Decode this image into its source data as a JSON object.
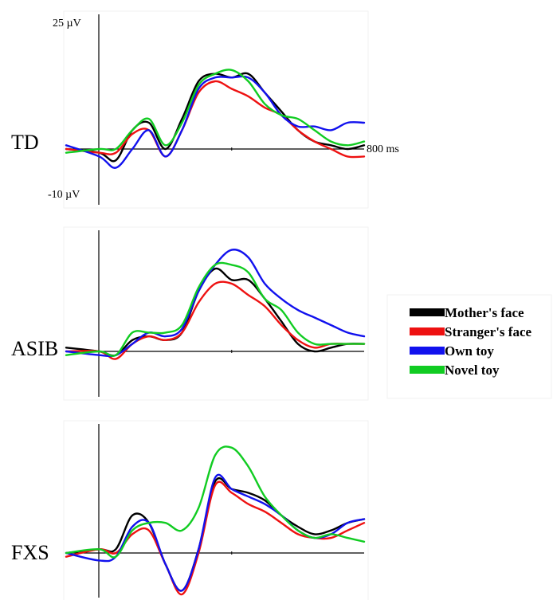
{
  "chart_data": {
    "type": "line",
    "x_axis": {
      "min": -100,
      "max": 800,
      "end_label": "800 ms"
    },
    "y_axis": {
      "min": -10,
      "max": 25,
      "top_label": "25 µV",
      "bottom_label": "-10 µV"
    },
    "legend": {
      "placement": "right",
      "entries": [
        {
          "name": "Mother's face",
          "color": "#000000"
        },
        {
          "name": "Stranger's face",
          "color": "#ee1111"
        },
        {
          "name": "Own toy",
          "color": "#1111ee"
        },
        {
          "name": "Novel toy",
          "color": "#11cc22"
        }
      ]
    },
    "panels": [
      {
        "label": "TD",
        "x": [
          -100,
          0,
          50,
          100,
          150,
          200,
          250,
          300,
          350,
          400,
          450,
          500,
          550,
          600,
          650,
          700,
          750,
          800
        ],
        "series": [
          {
            "name": "Mother's face",
            "values": [
              0,
              -1,
              -3,
              5,
              7,
              0,
              8,
              18,
              20,
              19,
              20,
              15,
              10,
              5,
              2,
              1,
              0,
              1
            ]
          },
          {
            "name": "Stranger's face",
            "values": [
              0,
              -1,
              -1,
              4,
              5,
              -2,
              5,
              15,
              18,
              16,
              14,
              11,
              9,
              5,
              2,
              0,
              -2,
              -2
            ]
          },
          {
            "name": "Own toy",
            "values": [
              1,
              -2,
              -5,
              0,
              5,
              -2,
              5,
              16,
              19,
              19,
              19,
              15,
              9,
              6,
              6,
              5,
              7,
              7
            ]
          },
          {
            "name": "Novel toy",
            "values": [
              -1,
              0,
              0,
              5,
              8,
              1,
              7,
              17,
              20,
              21,
              18,
              12,
              9,
              8,
              5,
              2,
              1,
              2
            ]
          }
        ]
      },
      {
        "label": "ASIB",
        "x": [
          -100,
          0,
          50,
          100,
          150,
          200,
          250,
          300,
          350,
          400,
          450,
          500,
          550,
          600,
          650,
          700,
          750,
          800
        ],
        "series": [
          {
            "name": "Mother's face",
            "values": [
              1,
              0,
              -1,
              3,
              4,
              3,
              5,
              16,
              22,
              19,
              19,
              14,
              8,
              2,
              0,
              1,
              2,
              2
            ]
          },
          {
            "name": "Stranger's face",
            "values": [
              0,
              0,
              -2,
              2,
              4,
              3,
              5,
              13,
              18,
              18,
              15,
              12,
              7,
              3,
              1,
              2,
              2,
              2
            ]
          },
          {
            "name": "Own toy",
            "values": [
              0,
              -1,
              -1,
              2,
              5,
              4,
              6,
              16,
              23,
              27,
              25,
              18,
              14,
              11,
              9,
              7,
              5,
              4
            ]
          },
          {
            "name": "Novel toy",
            "values": [
              -1,
              0,
              -1,
              5,
              5,
              5,
              7,
              17,
              23,
              23,
              21,
              14,
              11,
              5,
              2,
              2,
              2,
              2
            ]
          }
        ]
      },
      {
        "label": "FXS",
        "x": [
          -100,
          0,
          50,
          100,
          150,
          200,
          250,
          300,
          350,
          400,
          450,
          500,
          550,
          600,
          650,
          700,
          750,
          800
        ],
        "series": [
          {
            "name": "Mother's face",
            "values": [
              0,
              1,
              1,
              10,
              8,
              -3,
              -10,
              1,
              19,
              17,
              16,
              14,
              10,
              7,
              5,
              6,
              8,
              9
            ]
          },
          {
            "name": "Stranger's face",
            "values": [
              -1,
              1,
              0,
              5,
              6,
              -3,
              -11,
              0,
              18,
              16,
              13,
              11,
              8,
              5,
              4,
              4,
              6,
              8
            ]
          },
          {
            "name": "Own toy",
            "values": [
              0,
              -2,
              -1,
              7,
              8,
              -3,
              -10,
              1,
              20,
              17,
              15,
              13,
              10,
              6,
              4,
              5,
              8,
              9
            ]
          },
          {
            "name": "Novel toy",
            "values": [
              0,
              1,
              -1,
              6,
              8,
              8,
              6,
              12,
              26,
              28,
              23,
              15,
              10,
              6,
              4,
              5,
              4,
              3
            ]
          }
        ]
      }
    ]
  }
}
